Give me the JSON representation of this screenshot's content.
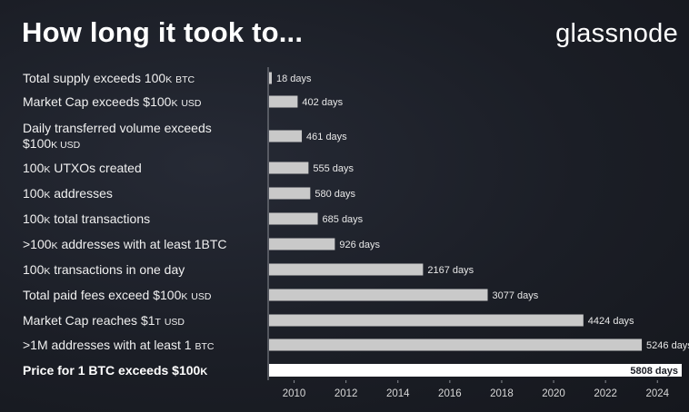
{
  "header": {
    "title": "How long it took to...",
    "brand": "glassnode"
  },
  "colors": {
    "bar": "#c9c9c9",
    "highlight_bar": "#ffffff",
    "axis": "#8a8d94",
    "background": "#1b1e26"
  },
  "chart_data": {
    "type": "bar",
    "orientation": "horizontal",
    "title": "How long it took to...",
    "xlabel": "",
    "ylabel": "",
    "unit": "days",
    "start_year": 2009,
    "xlim": [
      2009,
      2025
    ],
    "xticks": [
      "2010",
      "2012",
      "2014",
      "2016",
      "2018",
      "2020",
      "2022",
      "2024"
    ],
    "xtick_values": [
      2010,
      2012,
      2014,
      2016,
      2018,
      2020,
      2022,
      2024
    ],
    "grid": false,
    "categories": [
      [
        "Total supply exceeds 100",
        "K",
        " ",
        "BTC"
      ],
      [
        "Market Cap exceeds $100",
        "K",
        " ",
        "USD"
      ],
      [
        "Daily transferred volume exceeds",
        "$100",
        "K",
        " USD"
      ],
      [
        "100",
        "K",
        " UTXOs created",
        ""
      ],
      [
        "100",
        "K",
        " addresses",
        ""
      ],
      [
        "100",
        "K",
        " total transactions",
        ""
      ],
      [
        ">100",
        "K",
        " addresses with at least 1BTC",
        ""
      ],
      [
        "100",
        "K",
        " transactions in one day",
        ""
      ],
      [
        "Total paid fees exceed $100",
        "K",
        " ",
        "USD"
      ],
      [
        "Market Cap reaches $1",
        "T",
        " ",
        "USD"
      ],
      [
        ">1M addresses with at least 1 ",
        "",
        "",
        "BTC"
      ],
      [
        "Price for 1 BTC exceeds $100",
        "K",
        "",
        ""
      ]
    ],
    "values": [
      18,
      402,
      461,
      555,
      580,
      685,
      926,
      2167,
      3077,
      4424,
      5246,
      5808
    ],
    "value_labels": [
      "18 days",
      "402 days",
      "461 days",
      "555 days",
      "580 days",
      "685 days",
      "926 days",
      "2167 days",
      "3077 days",
      "4424 days",
      "5246 days",
      "5808 days"
    ],
    "highlight_index": 11
  }
}
